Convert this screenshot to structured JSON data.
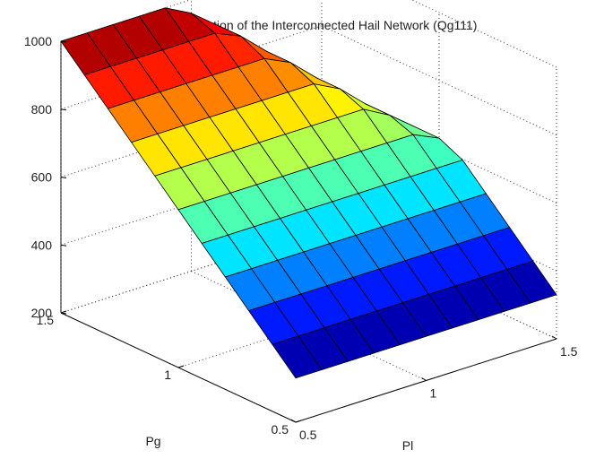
{
  "chart_data": {
    "type": "surface",
    "title": "Utilized Generation of the Interconnected Hail Network (Qg111)",
    "xlabel": "Pl",
    "ylabel": "Pg",
    "zlabel": "",
    "xlim": [
      0.5,
      1.5
    ],
    "ylim": [
      0.5,
      1.5
    ],
    "zlim": [
      200,
      1000
    ],
    "x_ticks": [
      "0.5",
      "1",
      "1.5"
    ],
    "y_ticks": [
      "0.5",
      "1",
      "1.5"
    ],
    "z_ticks": [
      "200",
      "400",
      "600",
      "800",
      "1000"
    ],
    "grid": true,
    "colormap": "jet",
    "clim": [
      330,
      1000
    ],
    "pl_values": [
      0.5,
      0.6,
      0.7,
      0.8,
      0.9,
      1.0,
      1.1,
      1.2,
      1.3,
      1.4,
      1.5
    ],
    "pg_values": [
      0.5,
      0.6,
      0.7,
      0.8,
      0.9,
      1.0,
      1.1,
      1.2,
      1.3,
      1.4,
      1.5
    ],
    "z": [
      [
        330,
        330,
        330,
        330,
        330,
        330,
        330,
        330,
        330,
        330,
        330
      ],
      [
        397,
        397,
        397,
        397,
        397,
        397,
        397,
        397,
        397,
        397,
        397
      ],
      [
        464,
        464,
        464,
        464,
        464,
        464,
        464,
        464,
        464,
        464,
        464
      ],
      [
        531,
        531,
        531,
        531,
        531,
        531,
        531,
        531,
        531,
        531,
        531
      ],
      [
        598,
        598,
        598,
        598,
        598,
        598,
        598,
        598,
        598,
        598,
        598
      ],
      [
        665,
        665,
        665,
        665,
        665,
        665,
        665,
        665,
        665,
        665,
        630
      ],
      [
        732,
        732,
        732,
        732,
        732,
        732,
        732,
        732,
        732,
        690,
        630
      ],
      [
        799,
        799,
        799,
        799,
        799,
        799,
        799,
        799,
        760,
        690,
        630
      ],
      [
        866,
        866,
        866,
        866,
        866,
        866,
        866,
        830,
        760,
        690,
        630
      ],
      [
        933,
        933,
        933,
        933,
        933,
        933,
        900,
        830,
        760,
        690,
        630
      ],
      [
        1000,
        1000,
        1000,
        1000,
        1000,
        960,
        900,
        830,
        760,
        690,
        630
      ]
    ]
  }
}
